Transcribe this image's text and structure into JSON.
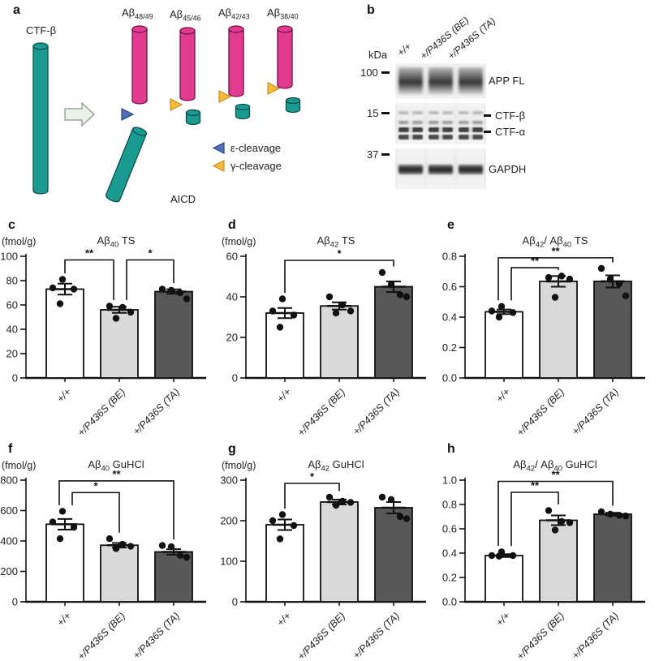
{
  "diagram": {
    "panel_letter": "a",
    "substrate_label": "CTF-β",
    "product_labels": [
      [
        {
          "t": "Aβ"
        },
        {
          "sub": "48/49"
        }
      ],
      [
        {
          "t": "Aβ"
        },
        {
          "sub": "45/46"
        }
      ],
      [
        {
          "t": "Aβ"
        },
        {
          "sub": "42/43"
        }
      ],
      [
        {
          "t": "Aβ"
        },
        {
          "sub": "38/40"
        }
      ]
    ],
    "aicd_label": "AICD",
    "legend": [
      {
        "label": "ε-cleavage"
      },
      {
        "label": "γ-cleavage"
      }
    ],
    "colors": {
      "substrate": "#1a9a90",
      "product": "#e23a8e",
      "epsilon": "#4d6fbc",
      "gamma": "#f4bc35",
      "arrow": "#e8f3e6"
    }
  },
  "blot": {
    "panel_letter": "b",
    "unit_label": "kDa",
    "lane_labels": [
      "+/+",
      "+/P436S (BE)",
      "+/P436S (TA)"
    ],
    "markers": [
      "100",
      "15",
      "37"
    ],
    "band_labels": {
      "app": "APP FL",
      "ctfb": "CTF-β",
      "ctfa": "CTF-α",
      "gapdh": "GAPDH"
    }
  },
  "chart_data": [
    {
      "panel": "c",
      "type": "bar",
      "title_segments": [
        {
          "t": "Aβ"
        },
        {
          "sub": "40"
        },
        {
          "t": " TS"
        }
      ],
      "ylabel": "(fmol/g)",
      "categories": [
        "+/+",
        "+/P436S (BE)",
        "+/P436S (TA)"
      ],
      "means": [
        73,
        56,
        71
      ],
      "sem": [
        4.5,
        2.5,
        1.8
      ],
      "points": [
        [
          81,
          74,
          73,
          61
        ],
        [
          59,
          58,
          54,
          49
        ],
        [
          73,
          72,
          70,
          65
        ]
      ],
      "ylim": [
        0,
        100
      ],
      "yticks": [
        {
          "v": 0,
          "label": "0"
        },
        {
          "v": 20,
          "label": "20"
        },
        {
          "v": 40,
          "label": "40"
        },
        {
          "v": 60,
          "label": "60"
        },
        {
          "v": 80,
          "label": "80"
        },
        {
          "v": 100,
          "label": "100"
        }
      ],
      "bar_colors": [
        "#ffffff",
        "#d9d9d9",
        "#58585a"
      ],
      "significance": [
        {
          "from": 0,
          "to": 1,
          "y": 97,
          "label": "**"
        },
        {
          "from": 1,
          "to": 2,
          "y": 97,
          "label": "*"
        }
      ]
    },
    {
      "panel": "d",
      "type": "bar",
      "title_segments": [
        {
          "t": "Aβ"
        },
        {
          "sub": "42"
        },
        {
          "t": " TS"
        }
      ],
      "ylabel": "(fmol/g)",
      "categories": [
        "+/+",
        "+/P436S (BE)",
        "+/P436S (TA)"
      ],
      "means": [
        32,
        35.5,
        45
      ],
      "sem": [
        2.5,
        1.8,
        2.6
      ],
      "points": [
        [
          39,
          33,
          31,
          25
        ],
        [
          40,
          36,
          33,
          32
        ],
        [
          52,
          46,
          41,
          40
        ]
      ],
      "ylim": [
        0,
        60
      ],
      "yticks": [
        {
          "v": 0,
          "label": "0"
        },
        {
          "v": 20,
          "label": "20"
        },
        {
          "v": 40,
          "label": "40"
        },
        {
          "v": 60,
          "label": "60"
        }
      ],
      "bar_colors": [
        "#ffffff",
        "#d9d9d9",
        "#58585a"
      ],
      "significance": [
        {
          "from": 0,
          "to": 2,
          "y": 58,
          "label": "*"
        }
      ]
    },
    {
      "panel": "e",
      "type": "bar",
      "title_segments": [
        {
          "t": "Aβ"
        },
        {
          "sub": "42"
        },
        {
          "t": "/ Aβ"
        },
        {
          "sub": "40"
        },
        {
          "t": " TS"
        }
      ],
      "ylabel": "",
      "categories": [
        "+/+",
        "+/P436S (BE)",
        "+/P436S (TA)"
      ],
      "means": [
        0.435,
        0.635,
        0.635
      ],
      "sem": [
        0.015,
        0.035,
        0.04
      ],
      "points": [
        [
          0.47,
          0.44,
          0.43,
          0.4
        ],
        [
          0.66,
          0.67,
          0.65,
          0.53
        ],
        [
          0.72,
          0.65,
          0.62,
          0.54
        ]
      ],
      "ylim": [
        0,
        0.8
      ],
      "yticks": [
        {
          "v": 0,
          "label": "0.0"
        },
        {
          "v": 0.2,
          "label": "0.2"
        },
        {
          "v": 0.4,
          "label": "0.4"
        },
        {
          "v": 0.6,
          "label": "0.6"
        },
        {
          "v": 0.8,
          "label": "0.8"
        }
      ],
      "bar_colors": [
        "#ffffff",
        "#d9d9d9",
        "#58585a"
      ],
      "significance": [
        {
          "from": 0,
          "to": 2,
          "y": 0.79,
          "label": "**"
        },
        {
          "from": 0,
          "to": 1,
          "y": 0.725,
          "label": "**"
        }
      ]
    },
    {
      "panel": "f",
      "type": "bar",
      "title_segments": [
        {
          "t": "Aβ"
        },
        {
          "sub": "40"
        },
        {
          "t": " GuHCl"
        }
      ],
      "ylabel": "(fmol/g)",
      "categories": [
        "+/+",
        "+/P436S (BE)",
        "+/P436S (TA)"
      ],
      "means": [
        510,
        372,
        328
      ],
      "sem": [
        35,
        15,
        18
      ],
      "points": [
        [
          595,
          525,
          490,
          415
        ],
        [
          415,
          378,
          365,
          350
        ],
        [
          370,
          362,
          305,
          292
        ]
      ],
      "ylim": [
        0,
        800
      ],
      "yticks": [
        {
          "v": 0,
          "label": "0"
        },
        {
          "v": 200,
          "label": "200"
        },
        {
          "v": 400,
          "label": "400"
        },
        {
          "v": 600,
          "label": "600"
        },
        {
          "v": 800,
          "label": "800"
        }
      ],
      "bar_colors": [
        "#ffffff",
        "#d9d9d9",
        "#58585a"
      ],
      "significance": [
        {
          "from": 0,
          "to": 2,
          "y": 795,
          "label": "**"
        },
        {
          "from": 0,
          "to": 1,
          "y": 718,
          "label": "*"
        }
      ]
    },
    {
      "panel": "g",
      "type": "bar",
      "title_segments": [
        {
          "t": "Aβ"
        },
        {
          "sub": "42"
        },
        {
          "t": " GuHCl"
        }
      ],
      "ylabel": "(fmol/g)",
      "categories": [
        "+/+",
        "+/P436S (BE)",
        "+/P436S (TA)"
      ],
      "means": [
        190,
        246,
        232
      ],
      "sem": [
        13,
        6,
        14
      ],
      "points": [
        [
          215,
          200,
          188,
          155
        ],
        [
          258,
          248,
          245,
          238
        ],
        [
          258,
          252,
          210,
          205
        ]
      ],
      "ylim": [
        0,
        300
      ],
      "yticks": [
        {
          "v": 0,
          "label": "0"
        },
        {
          "v": 100,
          "label": "100"
        },
        {
          "v": 200,
          "label": "200"
        },
        {
          "v": 300,
          "label": "300"
        }
      ],
      "bar_colors": [
        "#ffffff",
        "#d9d9d9",
        "#58585a"
      ],
      "significance": [
        {
          "from": 0,
          "to": 1,
          "y": 292,
          "label": "*"
        }
      ]
    },
    {
      "panel": "h",
      "type": "bar",
      "title_segments": [
        {
          "t": "Aβ"
        },
        {
          "sub": "42"
        },
        {
          "t": "/ Aβ"
        },
        {
          "sub": "40"
        },
        {
          "t": " GuHCl"
        }
      ],
      "ylabel": "",
      "categories": [
        "+/+",
        "+/P436S (BE)",
        "+/P436S (TA)"
      ],
      "means": [
        0.38,
        0.67,
        0.72
      ],
      "sem": [
        0.012,
        0.04,
        0.012
      ],
      "points": [
        [
          0.41,
          0.38,
          0.38,
          0.375
        ],
        [
          0.75,
          0.66,
          0.65,
          0.59
        ],
        [
          0.74,
          0.72,
          0.71,
          0.705
        ]
      ],
      "ylim": [
        0,
        1.0
      ],
      "yticks": [
        {
          "v": 0,
          "label": "0.0"
        },
        {
          "v": 0.2,
          "label": "0.2"
        },
        {
          "v": 0.4,
          "label": "0.4"
        },
        {
          "v": 0.6,
          "label": "0.6"
        },
        {
          "v": 0.8,
          "label": "0.8"
        },
        {
          "v": 1,
          "label": "1.0"
        }
      ],
      "bar_colors": [
        "#ffffff",
        "#d9d9d9",
        "#58585a"
      ],
      "significance": [
        {
          "from": 0,
          "to": 2,
          "y": 0.99,
          "label": "**"
        },
        {
          "from": 0,
          "to": 1,
          "y": 0.9,
          "label": "**"
        }
      ]
    }
  ]
}
